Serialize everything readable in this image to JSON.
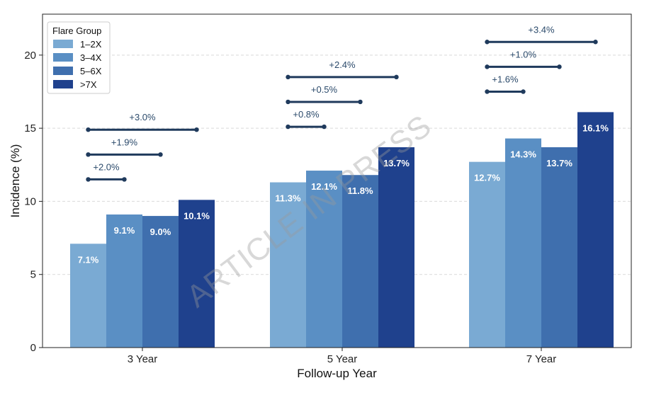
{
  "chart_data": {
    "type": "bar",
    "title": "",
    "xlabel": "Follow-up Year",
    "ylabel": "Incidence (%)",
    "ylim": [
      0,
      22.8
    ],
    "yticks": [
      0,
      5,
      10,
      15,
      20
    ],
    "grid": "horizontal dashed",
    "categories": [
      "3 Year",
      "5 Year",
      "7 Year"
    ],
    "series": [
      {
        "name": "1–2X",
        "color": "#7aaad3",
        "values": [
          7.1,
          11.3,
          12.7
        ],
        "labels": [
          "7.1%",
          "11.3%",
          "12.7%"
        ]
      },
      {
        "name": "3–4X",
        "color": "#5a8fc4",
        "values": [
          9.1,
          12.1,
          14.3
        ],
        "labels": [
          "9.1%",
          "12.1%",
          "14.3%"
        ]
      },
      {
        "name": "5–6X",
        "color": "#3f6fae",
        "values": [
          9.0,
          11.8,
          13.7
        ],
        "labels": [
          "9.0%",
          "11.8%",
          "13.7%"
        ]
      },
      {
        "name": ">7X",
        "color": "#1f418d",
        "values": [
          10.1,
          13.7,
          16.1
        ],
        "labels": [
          "10.1%",
          "13.7%",
          "16.1%"
        ]
      }
    ],
    "legend": {
      "title": "Flare Group",
      "position": "top-left"
    },
    "annotations": [
      {
        "category": "3 Year",
        "from_series": 0,
        "to_series": 1,
        "y": 11.5,
        "label": "+2.0%"
      },
      {
        "category": "3 Year",
        "from_series": 0,
        "to_series": 2,
        "y": 13.2,
        "label": "+1.9%"
      },
      {
        "category": "3 Year",
        "from_series": 0,
        "to_series": 3,
        "y": 14.9,
        "label": "+3.0%"
      },
      {
        "category": "5 Year",
        "from_series": 0,
        "to_series": 1,
        "y": 15.1,
        "label": "+0.8%"
      },
      {
        "category": "5 Year",
        "from_series": 0,
        "to_series": 2,
        "y": 16.8,
        "label": "+0.5%"
      },
      {
        "category": "5 Year",
        "from_series": 0,
        "to_series": 3,
        "y": 18.5,
        "label": "+2.4%"
      },
      {
        "category": "7 Year",
        "from_series": 0,
        "to_series": 1,
        "y": 17.5,
        "label": "+1.6%"
      },
      {
        "category": "7 Year",
        "from_series": 0,
        "to_series": 2,
        "y": 19.2,
        "label": "+1.0%"
      },
      {
        "category": "7 Year",
        "from_series": 0,
        "to_series": 3,
        "y": 20.9,
        "label": "+3.4%"
      }
    ],
    "annotation_color": "#1f3a5c",
    "watermark": "ARTICLE IN PRESS"
  }
}
